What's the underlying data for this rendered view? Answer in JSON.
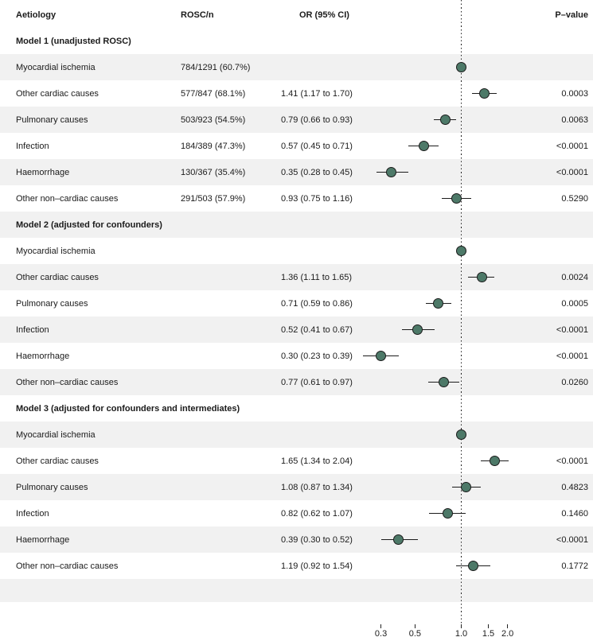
{
  "columns": {
    "aetiology": "Aetiology",
    "rosc": "ROSC/n",
    "or": "OR (95% CI)",
    "p": "P–value"
  },
  "colors": {
    "marker": "#4d7968",
    "marker_border": "#1b1b1b",
    "row_shade": "#f1f1f1",
    "text": "#1b1b1b",
    "reference_line": "#222222"
  },
  "chart_data": {
    "type": "forest",
    "x_scale": "log10",
    "reference_value": 1.0,
    "x_ticks": [
      0.3,
      0.5,
      1.0,
      1.5,
      2.0
    ],
    "x_tick_labels": [
      "0.3",
      "0.5",
      "1.0",
      "1.5",
      "2.0"
    ],
    "sections": [
      {
        "label": "Model 1 (unadjusted ROSC)",
        "rows": [
          {
            "aetiology": "Myocardial ischemia",
            "rosc": "784/1291 (60.7%)",
            "or": 1.0,
            "reference": true,
            "or_text": "",
            "p": ""
          },
          {
            "aetiology": "Other cardiac causes",
            "rosc": "577/847 (68.1%)",
            "or": 1.41,
            "lo": 1.17,
            "hi": 1.7,
            "or_text": "1.41 (1.17 to 1.70)",
            "p": "0.0003"
          },
          {
            "aetiology": "Pulmonary causes",
            "rosc": "503/923 (54.5%)",
            "or": 0.79,
            "lo": 0.66,
            "hi": 0.93,
            "or_text": "0.79 (0.66 to 0.93)",
            "p": "0.0063"
          },
          {
            "aetiology": "Infection",
            "rosc": "184/389 (47.3%)",
            "or": 0.57,
            "lo": 0.45,
            "hi": 0.71,
            "or_text": "0.57 (0.45 to 0.71)",
            "p": "<0.0001"
          },
          {
            "aetiology": "Haemorrhage",
            "rosc": "130/367 (35.4%)",
            "or": 0.35,
            "lo": 0.28,
            "hi": 0.45,
            "or_text": "0.35 (0.28 to 0.45)",
            "p": "<0.0001"
          },
          {
            "aetiology": "Other non–cardiac causes",
            "rosc": "291/503 (57.9%)",
            "or": 0.93,
            "lo": 0.75,
            "hi": 1.16,
            "or_text": "0.93 (0.75 to 1.16)",
            "p": "0.5290"
          }
        ]
      },
      {
        "label": "Model 2 (adjusted for confounders)",
        "rows": [
          {
            "aetiology": "Myocardial ischemia",
            "rosc": "",
            "or": 1.0,
            "reference": true,
            "or_text": "",
            "p": ""
          },
          {
            "aetiology": "Other cardiac causes",
            "rosc": "",
            "or": 1.36,
            "lo": 1.11,
            "hi": 1.65,
            "or_text": "1.36 (1.11 to 1.65)",
            "p": "0.0024"
          },
          {
            "aetiology": "Pulmonary causes",
            "rosc": "",
            "or": 0.71,
            "lo": 0.59,
            "hi": 0.86,
            "or_text": "0.71 (0.59 to 0.86)",
            "p": "0.0005"
          },
          {
            "aetiology": "Infection",
            "rosc": "",
            "or": 0.52,
            "lo": 0.41,
            "hi": 0.67,
            "or_text": "0.52 (0.41 to 0.67)",
            "p": "<0.0001"
          },
          {
            "aetiology": "Haemorrhage",
            "rosc": "",
            "or": 0.3,
            "lo": 0.23,
            "hi": 0.39,
            "or_text": "0.30 (0.23 to 0.39)",
            "p": "<0.0001"
          },
          {
            "aetiology": "Other non–cardiac causes",
            "rosc": "",
            "or": 0.77,
            "lo": 0.61,
            "hi": 0.97,
            "or_text": "0.77 (0.61 to 0.97)",
            "p": "0.0260"
          }
        ]
      },
      {
        "label": "Model 3 (adjusted for confounders and intermediates)",
        "rows": [
          {
            "aetiology": "Myocardial ischemia",
            "rosc": "",
            "or": 1.0,
            "reference": true,
            "or_text": "",
            "p": ""
          },
          {
            "aetiology": "Other cardiac causes",
            "rosc": "",
            "or": 1.65,
            "lo": 1.34,
            "hi": 2.04,
            "or_text": "1.65 (1.34 to 2.04)",
            "p": "<0.0001"
          },
          {
            "aetiology": "Pulmonary causes",
            "rosc": "",
            "or": 1.08,
            "lo": 0.87,
            "hi": 1.34,
            "or_text": "1.08 (0.87 to 1.34)",
            "p": "0.4823"
          },
          {
            "aetiology": "Infection",
            "rosc": "",
            "or": 0.82,
            "lo": 0.62,
            "hi": 1.07,
            "or_text": "0.82 (0.62 to 1.07)",
            "p": "0.1460"
          },
          {
            "aetiology": "Haemorrhage",
            "rosc": "",
            "or": 0.39,
            "lo": 0.3,
            "hi": 0.52,
            "or_text": "0.39 (0.30 to 0.52)",
            "p": "<0.0001"
          },
          {
            "aetiology": "Other non–cardiac causes",
            "rosc": "",
            "or": 1.19,
            "lo": 0.92,
            "hi": 1.54,
            "or_text": "1.19 (0.92 to 1.54)",
            "p": "0.1772"
          }
        ]
      }
    ]
  }
}
